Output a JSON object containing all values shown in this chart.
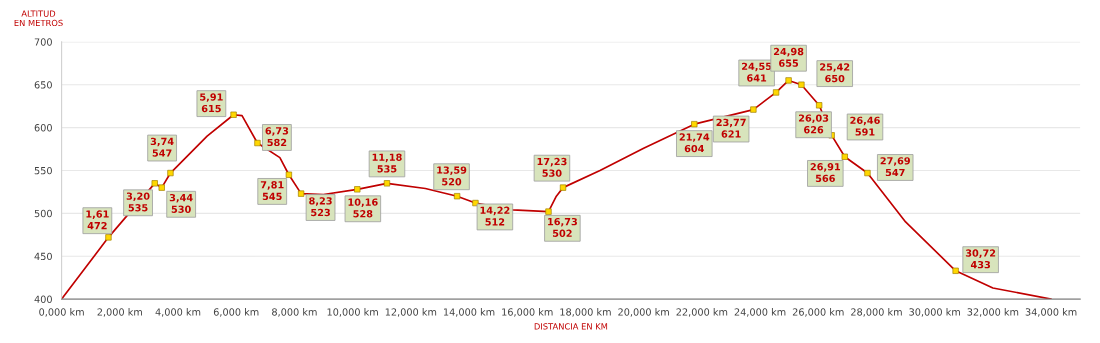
{
  "chart_data": {
    "type": "line",
    "xlabel": "DISTANCIA EN KM",
    "ylabel": "ALTITUD\nEN METROS",
    "xlim": [
      0,
      35
    ],
    "ylim": [
      400,
      700
    ],
    "xticks": [
      {
        "value": 0,
        "label": "0,000 km"
      },
      {
        "value": 2,
        "label": "2,000 km"
      },
      {
        "value": 4,
        "label": "4,000 km"
      },
      {
        "value": 6,
        "label": "6,000 km"
      },
      {
        "value": 8,
        "label": "8,000 km"
      },
      {
        "value": 10,
        "label": "10,000 km"
      },
      {
        "value": 12,
        "label": "12,000 km"
      },
      {
        "value": 14,
        "label": "14,000 km"
      },
      {
        "value": 16,
        "label": "16,000 km"
      },
      {
        "value": 18,
        "label": "18,000 km"
      },
      {
        "value": 20,
        "label": "20,000 km"
      },
      {
        "value": 22,
        "label": "22,000 km"
      },
      {
        "value": 24,
        "label": "24,000 km"
      },
      {
        "value": 26,
        "label": "26,000 km"
      },
      {
        "value": 28,
        "label": "28,000 km"
      },
      {
        "value": 30,
        "label": "30,000 km"
      },
      {
        "value": 32,
        "label": "32,000 km"
      },
      {
        "value": 34,
        "label": "34,000 km"
      }
    ],
    "yticks": [
      400,
      450,
      500,
      550,
      600,
      650,
      700
    ],
    "grid": "y",
    "legend": false,
    "series": [
      {
        "color": "#c00000",
        "marker": "none",
        "x": [
          0,
          1.61,
          3.2,
          3.44,
          3.74,
          5.0,
          5.91,
          6.2,
          6.73,
          7.5,
          7.81,
          8.23,
          9.0,
          10.16,
          11.18,
          12.5,
          13.59,
          14.22,
          15.5,
          16.73,
          17.0,
          17.23,
          18.5,
          20.0,
          21.74,
          23.77,
          24.55,
          24.98,
          25.42,
          26.03,
          26.46,
          26.91,
          27.69,
          29.0,
          30.72,
          32.0,
          34.0
        ],
        "values": [
          400,
          472,
          535,
          530,
          547,
          590,
          615,
          614,
          582,
          565,
          545,
          523,
          522,
          528,
          535,
          529,
          520,
          512,
          504,
          502,
          520,
          530,
          550,
          576,
          604,
          621,
          641,
          655,
          650,
          626,
          591,
          566,
          547,
          490,
          433,
          413,
          400
        ]
      },
      {
        "type": "scatter",
        "color": "#ffd700",
        "marker": "square",
        "x": [
          1.61,
          3.2,
          3.74,
          3.44,
          5.91,
          6.73,
          7.81,
          8.23,
          10.16,
          11.18,
          13.59,
          14.22,
          16.73,
          17.23,
          21.74,
          23.77,
          24.55,
          24.98,
          25.42,
          26.03,
          26.46,
          26.91,
          27.69,
          30.72
        ],
        "values": [
          472,
          535,
          547,
          530,
          615,
          582,
          545,
          523,
          528,
          535,
          520,
          512,
          502,
          530,
          604,
          621,
          641,
          655,
          650,
          626,
          591,
          566,
          547,
          433
        ],
        "value_labels": [
          "1,61\n472",
          "3,20\n535",
          "3,74\n547",
          "3,44\n530",
          "5,91\n615",
          "6,73\n582",
          "7,81\n545",
          "8,23\n523",
          "10,16\n528",
          "11,18\n535",
          "13,59\n520",
          "14,22\n512",
          "16,73\n502",
          "17,23\n530",
          "21,74\n604",
          "23,77\n621",
          "24,55\n641",
          "24,98\n655",
          "25,42\n650",
          "26,03\n626",
          "26,46\n591",
          "26,91\n566",
          "27,69\n547",
          "30,72\n433"
        ]
      }
    ]
  }
}
